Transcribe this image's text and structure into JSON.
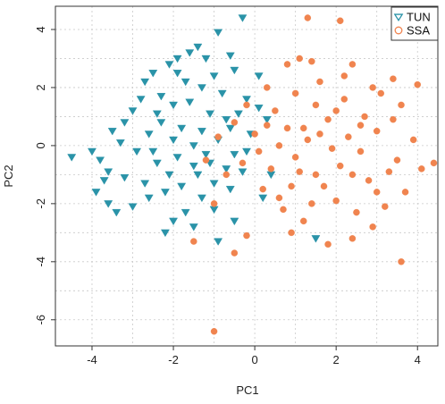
{
  "chart_data": {
    "type": "scatter",
    "title": "",
    "xlabel": "PC1",
    "ylabel": "PC2",
    "xlim": [
      -4.9,
      4.5
    ],
    "ylim": [
      -6.9,
      4.8
    ],
    "x_ticks": [
      -4,
      -2,
      0,
      2,
      4
    ],
    "y_ticks": [
      -6,
      -4,
      -2,
      0,
      2,
      4
    ],
    "grid": true,
    "legend_position": "top-right",
    "series": [
      {
        "name": "TUN",
        "marker": "triangle-down",
        "color": "#2a93a8",
        "points": [
          [
            -4.5,
            -0.4
          ],
          [
            -4.0,
            -0.2
          ],
          [
            -3.8,
            -0.5
          ],
          [
            -3.6,
            -0.9
          ],
          [
            -3.9,
            -1.6
          ],
          [
            -3.6,
            -2.0
          ],
          [
            -3.4,
            -2.3
          ],
          [
            -3.0,
            -2.1
          ],
          [
            -2.6,
            -1.8
          ],
          [
            -3.5,
            0.5
          ],
          [
            -3.2,
            0.8
          ],
          [
            -3.0,
            1.2
          ],
          [
            -2.7,
            2.2
          ],
          [
            -2.5,
            2.5
          ],
          [
            -2.3,
            1.7
          ],
          [
            -2.1,
            2.8
          ],
          [
            -1.9,
            3.0
          ],
          [
            -1.6,
            3.2
          ],
          [
            -1.4,
            3.4
          ],
          [
            -1.2,
            3.0
          ],
          [
            -0.9,
            3.9
          ],
          [
            -0.6,
            3.1
          ],
          [
            -0.3,
            4.4
          ],
          [
            -0.5,
            2.6
          ],
          [
            -1.0,
            2.4
          ],
          [
            -1.3,
            2.0
          ],
          [
            -1.7,
            2.2
          ],
          [
            -2.0,
            1.4
          ],
          [
            -2.3,
            0.8
          ],
          [
            -2.6,
            0.4
          ],
          [
            -2.9,
            -0.2
          ],
          [
            -2.4,
            -0.6
          ],
          [
            -2.1,
            -1.0
          ],
          [
            -1.8,
            -1.4
          ],
          [
            -1.5,
            -0.7
          ],
          [
            -1.2,
            -0.3
          ],
          [
            -0.9,
            0.2
          ],
          [
            -0.6,
            0.6
          ],
          [
            -0.4,
            1.1
          ],
          [
            -0.2,
            1.6
          ],
          [
            0.1,
            1.3
          ],
          [
            0.3,
            0.9
          ],
          [
            -0.1,
            0.4
          ],
          [
            -0.7,
            -0.8
          ],
          [
            -1.0,
            -1.3
          ],
          [
            -1.3,
            -1.8
          ],
          [
            -1.7,
            -2.3
          ],
          [
            -2.0,
            -2.6
          ],
          [
            -1.5,
            -2.8
          ],
          [
            -1.0,
            -2.2
          ],
          [
            -0.6,
            -1.5
          ],
          [
            -0.3,
            -0.9
          ],
          [
            -0.5,
            -2.6
          ],
          [
            -0.9,
            -3.3
          ],
          [
            -2.2,
            -3.0
          ],
          [
            -3.2,
            -1.1
          ],
          [
            -2.8,
            1.6
          ],
          [
            -1.8,
            0.6
          ],
          [
            -1.5,
            0.0
          ],
          [
            -2.0,
            0.2
          ],
          [
            -1.1,
            1.1
          ],
          [
            -0.8,
            1.8
          ],
          [
            -1.9,
            -0.4
          ],
          [
            -2.7,
            -1.3
          ],
          [
            -1.3,
            0.5
          ],
          [
            -0.2,
            -0.2
          ],
          [
            0.4,
            -1.0
          ],
          [
            0.2,
            -1.8
          ],
          [
            0.1,
            2.4
          ],
          [
            -2.4,
            1.1
          ],
          [
            -3.3,
            0.1
          ],
          [
            -1.6,
            1.5
          ],
          [
            -0.7,
            0.9
          ],
          [
            -1.4,
            -1.0
          ],
          [
            -2.5,
            -0.2
          ],
          [
            -2.2,
            -1.6
          ],
          [
            -1.9,
            2.5
          ],
          [
            -1.1,
            -0.6
          ],
          [
            -0.5,
            -0.3
          ],
          [
            -3.7,
            -1.2
          ],
          [
            1.5,
            -3.2
          ]
        ]
      },
      {
        "name": "SSA",
        "marker": "circle",
        "color": "#f0844f",
        "points": [
          [
            2.1,
            4.3
          ],
          [
            1.3,
            4.4
          ],
          [
            0.8,
            2.8
          ],
          [
            1.4,
            2.9
          ],
          [
            2.4,
            2.8
          ],
          [
            2.9,
            2.0
          ],
          [
            3.4,
            2.3
          ],
          [
            4.0,
            2.1
          ],
          [
            3.6,
            1.4
          ],
          [
            3.9,
            0.2
          ],
          [
            3.5,
            -0.5
          ],
          [
            4.1,
            -0.8
          ],
          [
            3.7,
            -1.6
          ],
          [
            3.2,
            -2.1
          ],
          [
            2.9,
            -2.8
          ],
          [
            2.4,
            -3.2
          ],
          [
            1.8,
            -3.4
          ],
          [
            1.2,
            -2.6
          ],
          [
            0.7,
            -2.2
          ],
          [
            0.2,
            -1.5
          ],
          [
            -0.3,
            -0.6
          ],
          [
            -0.9,
            0.3
          ],
          [
            -1.2,
            -0.5
          ],
          [
            -0.5,
            0.8
          ],
          [
            0.0,
            0.4
          ],
          [
            0.5,
            1.2
          ],
          [
            1.0,
            1.8
          ],
          [
            1.6,
            2.2
          ],
          [
            2.2,
            1.6
          ],
          [
            2.7,
            1.0
          ],
          [
            3.0,
            0.5
          ],
          [
            2.6,
            -0.2
          ],
          [
            2.1,
            -0.7
          ],
          [
            1.5,
            -1.0
          ],
          [
            1.0,
            -0.4
          ],
          [
            0.6,
            0.0
          ],
          [
            1.2,
            0.6
          ],
          [
            1.8,
            0.9
          ],
          [
            2.3,
            0.3
          ],
          [
            2.8,
            -1.2
          ],
          [
            2.0,
            -1.9
          ],
          [
            1.4,
            -2.0
          ],
          [
            0.9,
            -1.4
          ],
          [
            0.4,
            -0.8
          ],
          [
            0.3,
            2.0
          ],
          [
            -0.2,
            1.4
          ],
          [
            1.1,
            3.0
          ],
          [
            3.1,
            1.8
          ],
          [
            3.3,
            -0.9
          ],
          [
            2.5,
            -2.3
          ],
          [
            1.7,
            -1.4
          ],
          [
            1.3,
            0.2
          ],
          [
            0.8,
            0.6
          ],
          [
            0.1,
            -0.2
          ],
          [
            -0.7,
            -1.0
          ],
          [
            -1.0,
            -2.0
          ],
          [
            -1.5,
            -3.3
          ],
          [
            -0.2,
            -3.1
          ],
          [
            -0.5,
            -3.7
          ],
          [
            0.9,
            -3.0
          ],
          [
            -1.0,
            -6.4
          ],
          [
            3.6,
            -4.0
          ],
          [
            4.4,
            -0.6
          ],
          [
            2.2,
            2.4
          ],
          [
            1.9,
            -0.1
          ],
          [
            2.6,
            0.7
          ],
          [
            1.5,
            1.4
          ],
          [
            0.6,
            -1.8
          ],
          [
            3.0,
            -1.6
          ],
          [
            2.4,
            -1.0
          ],
          [
            1.1,
            -0.9
          ],
          [
            1.6,
            0.4
          ],
          [
            2.0,
            1.2
          ],
          [
            0.3,
            0.7
          ],
          [
            3.4,
            0.9
          ]
        ]
      }
    ]
  }
}
